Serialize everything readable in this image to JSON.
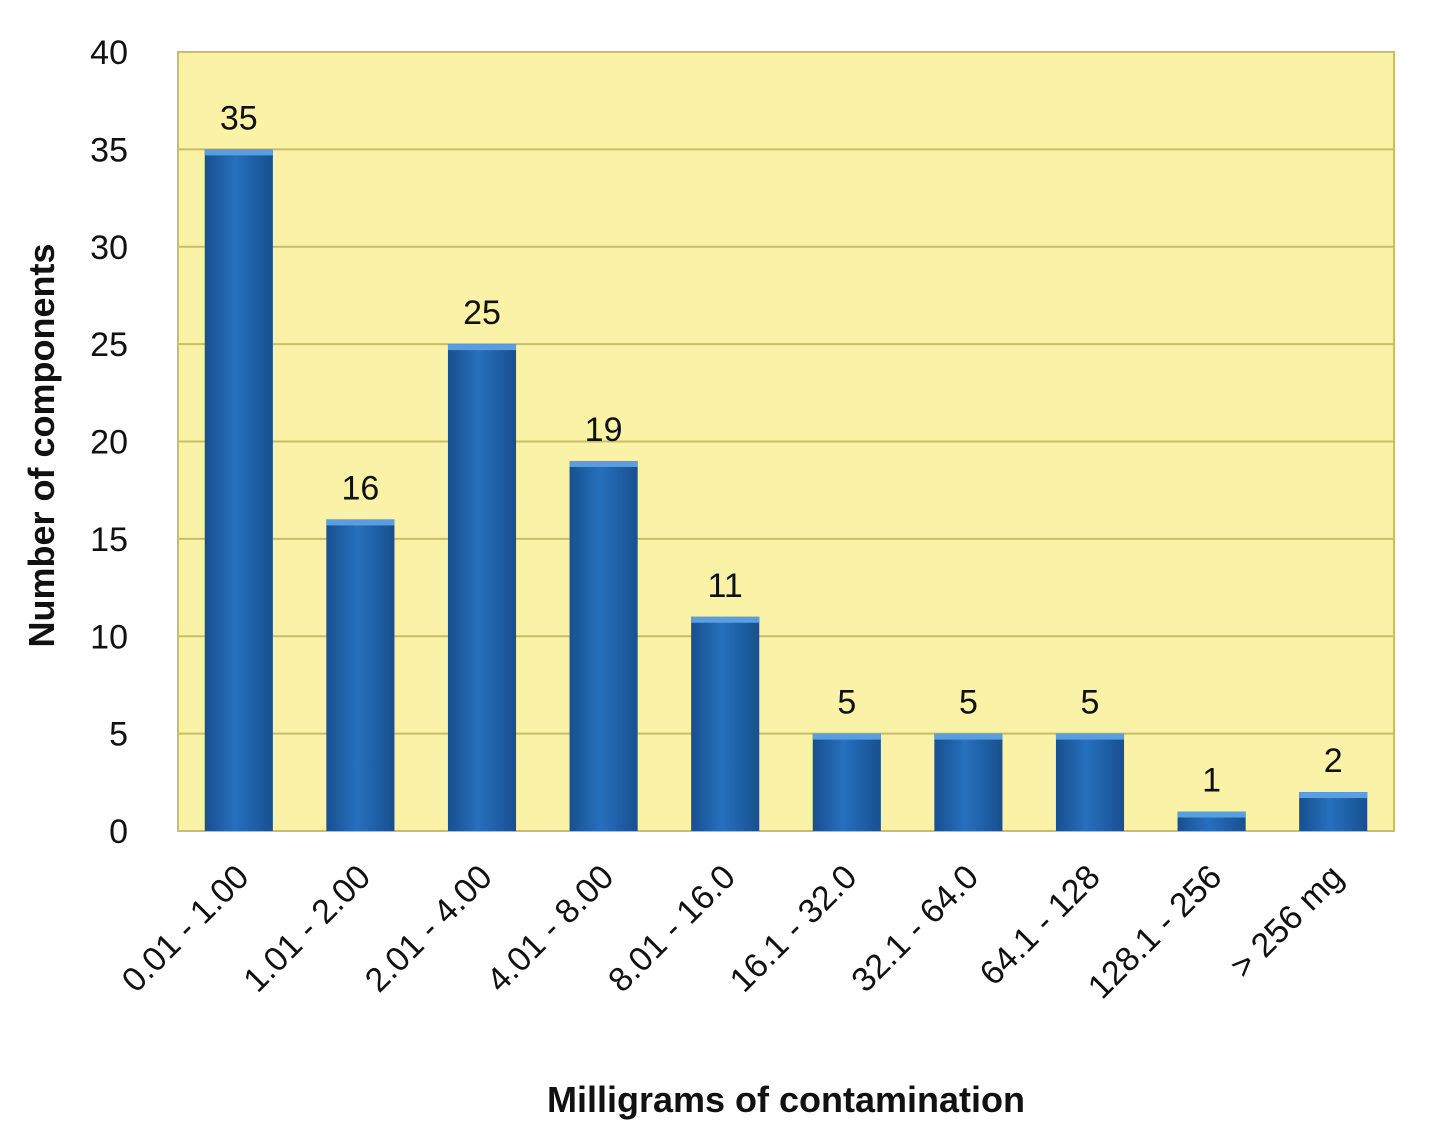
{
  "chart_data": {
    "type": "bar",
    "title": "",
    "xlabel": "Milligrams of contamination",
    "ylabel": "Number of components",
    "categories": [
      "0.01 - 1.00",
      "1.01 - 2.00",
      "2.01 - 4.00",
      "4.01 - 8.00",
      "8.01 - 16.0",
      "16.1 - 32.0",
      "32.1 - 64.0",
      "64.1 - 128",
      "128.1 - 256",
      "> 256 mg"
    ],
    "values": [
      35,
      16,
      25,
      19,
      11,
      5,
      5,
      5,
      1,
      2
    ],
    "ylim": [
      0,
      40
    ],
    "yticks": [
      0,
      5,
      10,
      15,
      20,
      25,
      30,
      35,
      40
    ],
    "grid": true,
    "legend": "none",
    "data_labels": true,
    "colors": {
      "bar": "#2670bd",
      "bar_dark": "#17508f",
      "bar_top": "#5a9ee0",
      "plot_background": "#faf2a6",
      "gridline": "#c8bd6a"
    }
  }
}
